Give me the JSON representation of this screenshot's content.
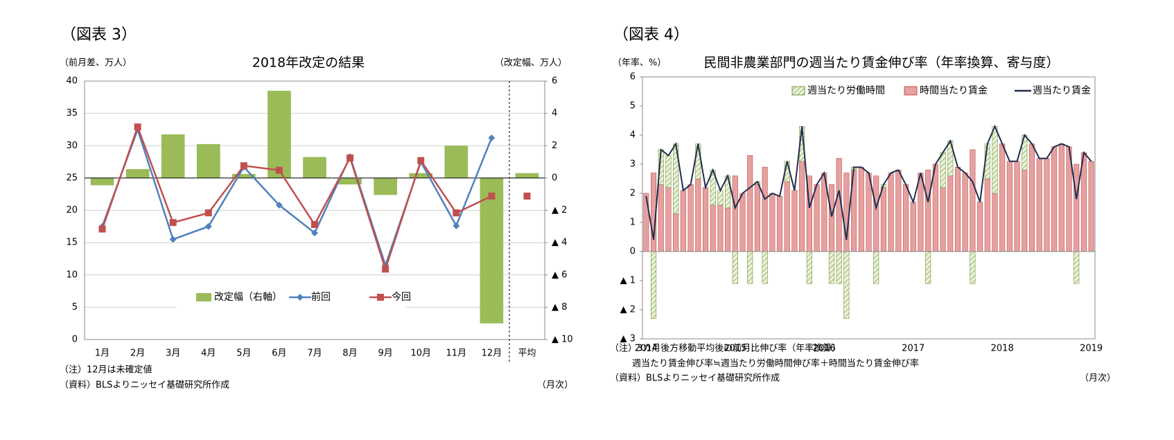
{
  "chart_data": [
    {
      "type": "bar_line",
      "figure_label": "（図表 3）",
      "title": "2018年改定の結果",
      "y_label": "（前月差、万人）",
      "y2_label": "（改定幅、万人）",
      "x_label": "（月次）",
      "notes": [
        "（注）12月は未確定値",
        "（資料）BLSよりニッセイ基礎研究所作成"
      ],
      "categories": [
        "1月",
        "2月",
        "3月",
        "4月",
        "5月",
        "6月",
        "7月",
        "8月",
        "9月",
        "10月",
        "11月",
        "12月",
        "平均"
      ],
      "divider_index": 12,
      "series": [
        {
          "name": "改定幅（右軸）",
          "type": "bar",
          "axis": "y2",
          "color": "#9bbb59",
          "values": [
            -0.45,
            0.55,
            2.7,
            2.1,
            0.25,
            5.4,
            1.3,
            -0.4,
            -1.05,
            0.3,
            2.0,
            -9.0,
            0.3
          ]
        },
        {
          "name": "前回",
          "type": "line",
          "marker": "diamond",
          "color": "#4f81bd",
          "values": [
            17.5,
            32.5,
            15.5,
            17.5,
            26.7,
            20.8,
            16.5,
            28.3,
            11.5,
            27.5,
            17.6,
            31.2,
            null
          ]
        },
        {
          "name": "今回",
          "type": "line",
          "marker": "square",
          "color": "#c0504d",
          "values": [
            17.1,
            32.9,
            18.1,
            19.6,
            26.9,
            26.2,
            17.8,
            28.1,
            10.9,
            27.7,
            19.6,
            22.2,
            22.2
          ]
        }
      ],
      "ylim": [
        0,
        40
      ],
      "yticks": [
        0,
        5,
        10,
        15,
        20,
        25,
        30,
        35,
        40
      ],
      "y2lim": [
        -10,
        6
      ],
      "y2ticks": [
        6,
        4,
        2,
        0,
        {
          "value": -2,
          "label": "▲ 2"
        },
        {
          "value": -4,
          "label": "▲ 4"
        },
        {
          "value": -6,
          "label": "▲ 6"
        },
        {
          "value": -8,
          "label": "▲ 8"
        },
        {
          "value": -10,
          "label": "▲ 10"
        }
      ],
      "grid": true,
      "legend": "bottom-left"
    },
    {
      "type": "stacked_bar_line",
      "figure_label": "（図表 4）",
      "title": "民間非農業部門の週当たり賃金伸び率（年率換算、寄与度）",
      "y_label": "（年率、%）",
      "x_label": "（月次）",
      "notes": [
        "（注）3カ月後方移動平均後の前月比伸び率（年率換算）",
        "週当たり賃金伸び率≒週当たり労働時間伸び率＋時間当たり賃金伸び率",
        "（資料）BLSよりニッセイ基礎研究所作成"
      ],
      "categories": [
        "2014",
        null,
        null,
        null,
        null,
        null,
        null,
        null,
        null,
        null,
        null,
        null,
        "2015",
        null,
        null,
        null,
        null,
        null,
        null,
        null,
        null,
        null,
        null,
        null,
        "2016",
        null,
        null,
        null,
        null,
        null,
        null,
        null,
        null,
        null,
        null,
        null,
        "2017",
        null,
        null,
        null,
        null,
        null,
        null,
        null,
        null,
        null,
        null,
        null,
        "2018",
        null,
        null,
        null,
        null,
        null,
        null,
        null,
        null,
        null,
        null,
        null,
        "2019"
      ],
      "series": [
        {
          "name": "週当たり労働時間",
          "type": "bar",
          "hatch": true,
          "color": "#c4d79b",
          "values": [
            0,
            -2.3,
            1.2,
            1.1,
            2.4,
            0,
            0,
            1.2,
            0,
            1.2,
            0.5,
            1.1,
            -1.1,
            0,
            -1.1,
            0.1,
            -1.1,
            0,
            0,
            0.7,
            0,
            1.2,
            -1.1,
            0,
            0,
            -1.1,
            -1.1,
            -2.3,
            0.1,
            0,
            0,
            -1.1,
            0.1,
            0,
            0,
            0,
            0,
            0,
            -1.1,
            0,
            1.2,
            1.2,
            0,
            0,
            -1.1,
            0,
            1.2,
            2.3,
            0,
            0,
            0,
            1.2,
            0,
            0,
            0,
            0,
            0,
            0,
            -1.1,
            0,
            0
          ]
        },
        {
          "name": "時間当たり賃金",
          "type": "bar",
          "color": "#e6a0a0",
          "values": [
            2.0,
            2.7,
            2.3,
            2.2,
            1.3,
            2.1,
            2.3,
            2.5,
            2.2,
            1.6,
            1.6,
            1.5,
            2.6,
            2.0,
            3.3,
            2.3,
            2.9,
            2.0,
            1.9,
            2.4,
            2.1,
            3.1,
            2.6,
            2.3,
            2.7,
            2.3,
            3.2,
            2.7,
            2.8,
            2.9,
            2.7,
            2.6,
            2.2,
            2.7,
            2.8,
            2.3,
            1.7,
            2.7,
            2.8,
            3.0,
            2.2,
            2.6,
            2.9,
            2.7,
            3.5,
            1.7,
            2.5,
            2.0,
            3.7,
            3.1,
            3.1,
            2.8,
            3.7,
            3.2,
            3.2,
            3.6,
            3.7,
            3.6,
            3.0,
            3.4,
            3.1
          ]
        },
        {
          "name": "週当たり賃金",
          "type": "line",
          "color": "#1f2d4e",
          "values": [
            1.9,
            0.4,
            3.5,
            3.3,
            3.7,
            2.1,
            2.3,
            3.7,
            2.2,
            2.8,
            2.1,
            2.6,
            1.5,
            2.0,
            2.2,
            2.4,
            1.8,
            2.0,
            1.9,
            3.1,
            2.1,
            4.3,
            1.5,
            2.3,
            2.7,
            1.2,
            2.1,
            0.4,
            2.9,
            2.9,
            2.7,
            1.5,
            2.3,
            2.7,
            2.8,
            2.3,
            1.7,
            2.7,
            1.7,
            3.0,
            3.4,
            3.8,
            2.9,
            2.7,
            2.4,
            1.7,
            3.7,
            4.3,
            3.7,
            3.1,
            3.1,
            4.0,
            3.7,
            3.2,
            3.2,
            3.6,
            3.7,
            3.6,
            1.8,
            3.4,
            3.1
          ]
        }
      ],
      "ylim": [
        -3,
        6
      ],
      "yticks": [
        {
          "value": -3,
          "label": "▲ 3"
        },
        {
          "value": -2,
          "label": "▲ 2"
        },
        {
          "value": -1,
          "label": "▲ 1"
        },
        0,
        1,
        2,
        3,
        4,
        5,
        6
      ],
      "grid": false,
      "legend": "top"
    }
  ]
}
